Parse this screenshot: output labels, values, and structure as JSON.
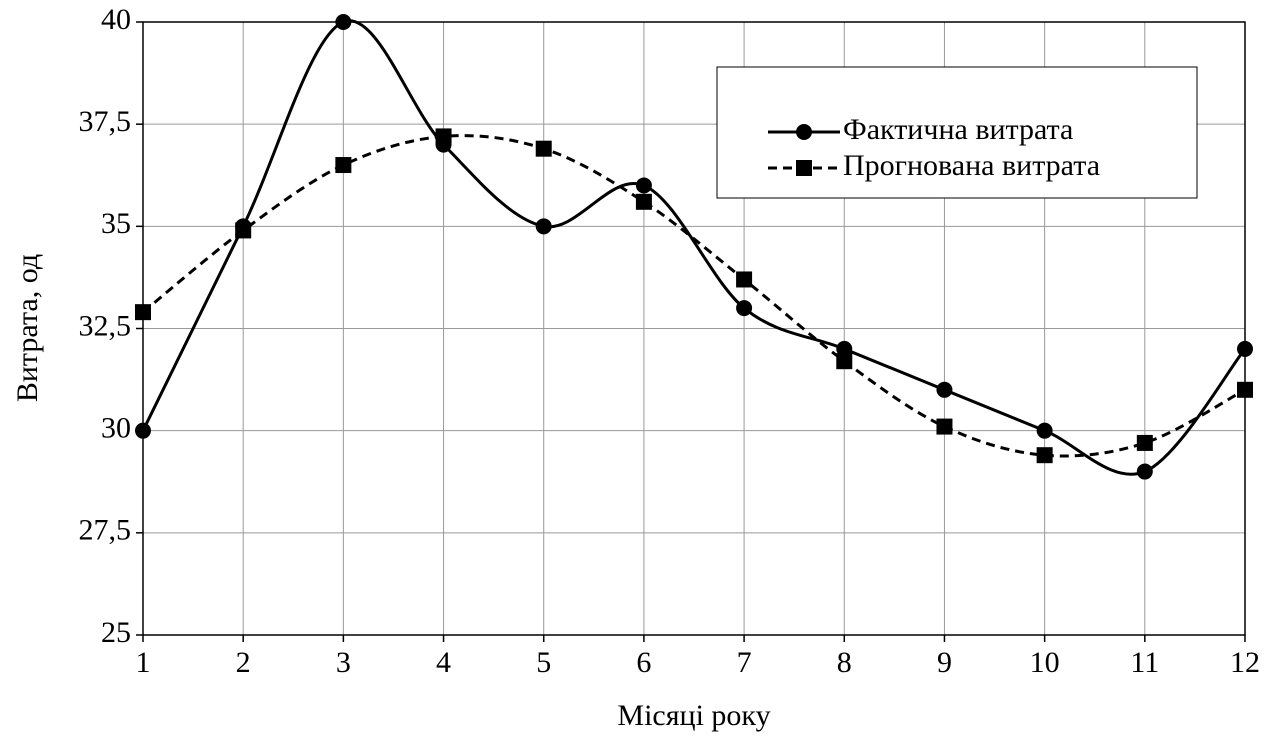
{
  "chart_data": {
    "type": "line",
    "x": [
      1,
      2,
      3,
      4,
      5,
      6,
      7,
      8,
      9,
      10,
      11,
      12
    ],
    "xlim": [
      1,
      12
    ],
    "xticks": [
      1,
      2,
      3,
      4,
      5,
      6,
      7,
      8,
      9,
      10,
      11,
      12
    ],
    "ylim": [
      25,
      40
    ],
    "yticks": [
      25,
      {
        "value": 27.5,
        "label": "27,5"
      },
      30,
      {
        "value": 32.5,
        "label": "32,5"
      },
      35,
      {
        "value": 37.5,
        "label": "37,5"
      },
      40
    ],
    "xlabel": "Місяці року",
    "ylabel": "Витрата, од",
    "grid": true,
    "smooth": true,
    "legend": "upper right",
    "series": [
      {
        "name": "Фактична витрата",
        "color": "#000000",
        "marker": "circle",
        "linestyle": "solid",
        "values": [
          30,
          35,
          40,
          37,
          35,
          36,
          33,
          32,
          31,
          30,
          29,
          32
        ]
      },
      {
        "name": "Прогнована витрата",
        "color": "#000000",
        "marker": "square",
        "linestyle": "dashed",
        "values": [
          32.9,
          34.9,
          36.5,
          37.2,
          36.9,
          35.6,
          33.7,
          31.7,
          30.1,
          29.4,
          29.7,
          31.0
        ]
      }
    ]
  }
}
